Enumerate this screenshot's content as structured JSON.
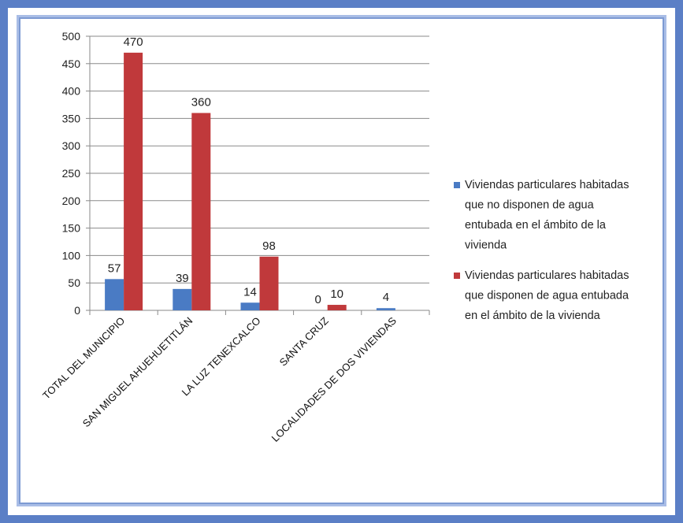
{
  "colors": {
    "series_1": "#4a7bc4",
    "series_2": "#c0393b",
    "grid": "#8a8a8a",
    "frame": "#5b7fc6"
  },
  "chart_data": {
    "type": "bar",
    "categories": [
      "TOTAL DEL MUNICIPIO",
      "SAN MIGUEL AHUEHUETITLÁN",
      "LA LUZ TENEXCALCO",
      "SANTA CRUZ",
      "LOCALIDADES DE DOS VIVIENDAS"
    ],
    "series": [
      {
        "name": "Viviendas particulares habitadas que no disponen de agua entubada en el ámbito de la vivienda",
        "legend_lines": [
          "Viviendas particulares habitadas",
          "que no disponen de agua",
          "entubada en el ámbito de la",
          "vivienda"
        ],
        "values": [
          57,
          39,
          14,
          0,
          4
        ],
        "labels": [
          "57",
          "39",
          "14",
          "0",
          "4"
        ]
      },
      {
        "name": "Viviendas particulares habitadas que disponen de agua entubada en el ámbito de la vivienda",
        "legend_lines": [
          "Viviendas particulares habitadas",
          "que disponen de agua entubada",
          "en el ámbito de la vivienda"
        ],
        "values": [
          470,
          360,
          98,
          10,
          null
        ],
        "labels": [
          "470",
          "360",
          "98",
          "10",
          ""
        ]
      }
    ],
    "yticks": [
      "0",
      "50",
      "100",
      "150",
      "200",
      "250",
      "300",
      "350",
      "400",
      "450",
      "500"
    ],
    "ylim": [
      0,
      500
    ],
    "grid": true,
    "legend_position": "right",
    "title": "",
    "xlabel": "",
    "ylabel": ""
  }
}
